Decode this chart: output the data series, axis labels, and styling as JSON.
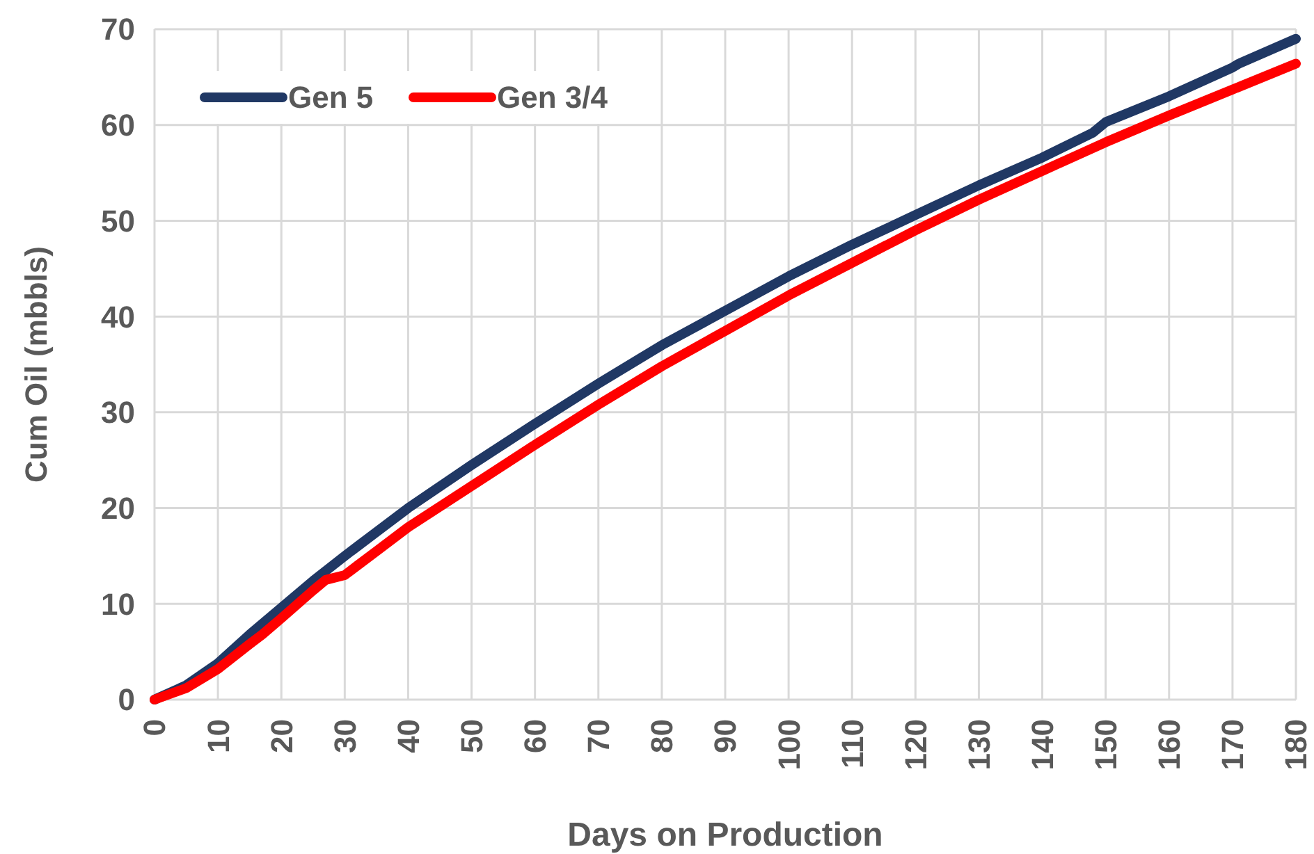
{
  "chart_data": {
    "type": "line",
    "xlabel": "Days on Production",
    "ylabel": "Cum Oil (mbbls)",
    "xlim": [
      0,
      180
    ],
    "ylim": [
      0,
      70
    ],
    "xticks": [
      0,
      10,
      20,
      30,
      40,
      50,
      60,
      70,
      80,
      90,
      100,
      110,
      120,
      130,
      140,
      150,
      160,
      170,
      180
    ],
    "yticks": [
      0,
      10,
      20,
      30,
      40,
      50,
      60,
      70
    ],
    "grid": true,
    "legend": "top left",
    "line_style": "solid",
    "marker": "none",
    "series": [
      {
        "name": "Gen 5",
        "color": "#203864",
        "x": [
          0,
          5,
          10,
          15,
          20,
          25,
          30,
          40,
          50,
          60,
          70,
          80,
          90,
          100,
          110,
          120,
          130,
          140,
          148,
          150,
          160,
          170,
          171,
          180
        ],
        "values": [
          0,
          1.5,
          3.8,
          6.8,
          9.6,
          12.4,
          15,
          20,
          24.5,
          28.8,
          33,
          37,
          40.6,
          44.2,
          47.5,
          50.6,
          53.7,
          56.6,
          59.2,
          60.3,
          63,
          66,
          66.4,
          69
        ]
      },
      {
        "name": "Gen 3/4",
        "color": "#ff0000",
        "x": [
          0,
          5,
          10,
          15,
          17,
          20,
          25,
          27,
          30,
          35,
          40,
          50,
          60,
          70,
          80,
          90,
          100,
          110,
          120,
          130,
          140,
          150,
          160,
          170,
          180
        ],
        "values": [
          0,
          1.2,
          3.2,
          5.8,
          6.8,
          8.5,
          11.4,
          12.5,
          13,
          15.5,
          18,
          22.3,
          26.6,
          30.8,
          34.8,
          38.5,
          42.2,
          45.6,
          49,
          52.2,
          55.2,
          58.2,
          61,
          63.7,
          66.4
        ]
      }
    ]
  }
}
